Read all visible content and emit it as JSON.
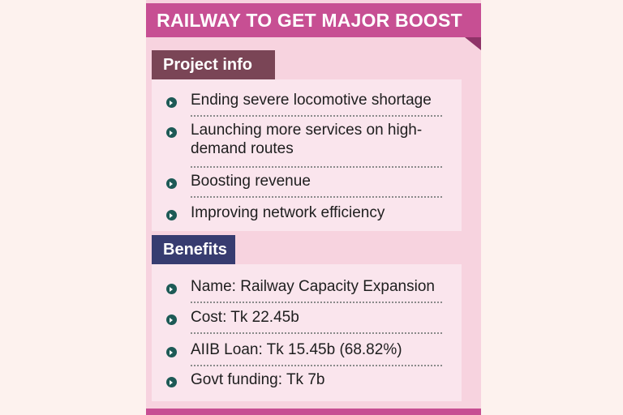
{
  "title": "RAILWAY TO GET MAJOR BOOST",
  "project_info": {
    "heading": "Project info",
    "items": [
      "Ending severe locomotive shortage",
      "Launching more services on high-demand routes",
      "Boosting revenue",
      "Improving network efficiency"
    ]
  },
  "benefits": {
    "heading": "Benefits",
    "items": [
      "Name: Railway Capacity Expansion",
      "Cost: Tk 22.45b",
      "AIIB Loan: Tk 15.45b (68.82%)",
      "Govt funding: Tk 7b"
    ]
  },
  "colors": {
    "title_bar": "#c74f93",
    "card_background": "#f7d3df",
    "project_tab": "#7a4556",
    "benefits_tab": "#373c70",
    "bullet": "#1d5a56"
  },
  "icons": {
    "bullet": "teal-circle-arrow-icon"
  }
}
